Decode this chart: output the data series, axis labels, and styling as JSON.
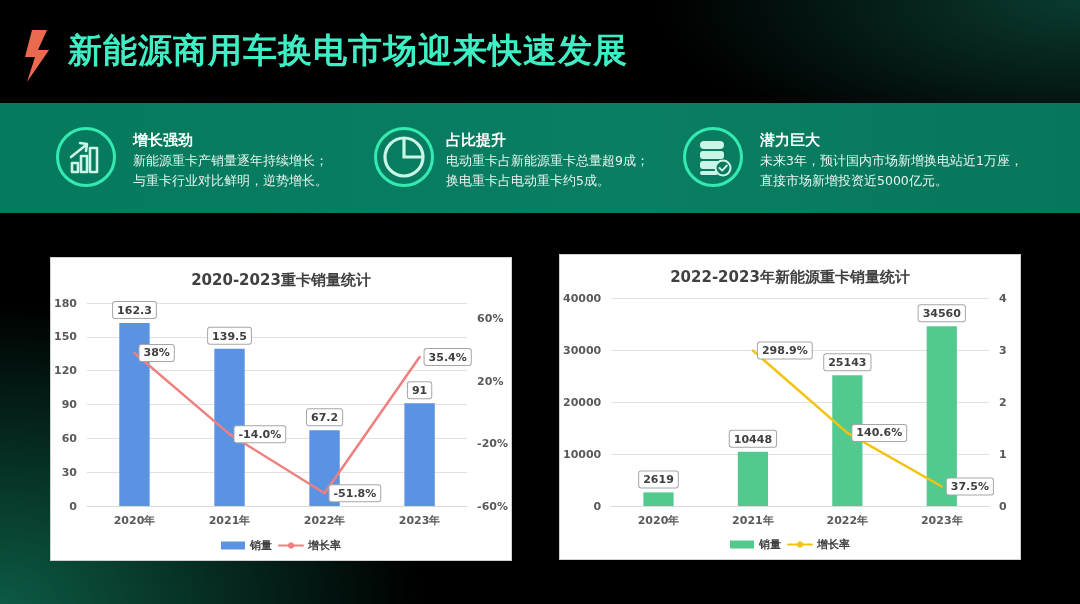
{
  "chart_data": [
    {
      "type": "other",
      "title": "新能源商用车换电市场迎来快速发展",
      "annotations": [
        "增长强劲",
        "新能源重卡产销量逐年持续增长；",
        "与重卡行业对比鲜明，逆势增长。",
        "占比提升",
        "电动重卡占新能源重卡总量超9成；",
        "换电重卡占电动重卡约5成。",
        "潜力巨大",
        "未来3年，预计国内市场新增换电站近1万座，",
        "直接市场新增投资近5000亿元。"
      ]
    },
    {
      "type": "bar",
      "title": "2020-2023重卡销量统计",
      "categories": [
        "2020年",
        "2021年",
        "2022年",
        "2023年"
      ],
      "series": [
        {
          "name": "销量",
          "type": "bar",
          "color": "#5b93e3",
          "values": [
            162.3,
            139.5,
            67.2,
            91
          ],
          "value_labels": [
            "162.3",
            "139.5",
            "67.2",
            "91"
          ]
        },
        {
          "name": "增长率",
          "type": "line",
          "axis": "y2",
          "color": "#f07f7f",
          "values": [
            38,
            -14.0,
            -51.8,
            35.4
          ],
          "value_labels": [
            "38%",
            "-14.0%",
            "-51.8%",
            "35.4%"
          ]
        }
      ],
      "ylim": [
        0,
        180
      ],
      "yticks": [
        0,
        30,
        60,
        90,
        120,
        150,
        180
      ],
      "y2lim": [
        -60,
        70
      ],
      "y2ticks": [
        {
          "value": -60,
          "label": "-60%"
        },
        {
          "value": -20,
          "label": "-20%"
        },
        {
          "value": 20,
          "label": "20%"
        },
        {
          "value": 60,
          "label": "60%"
        }
      ],
      "grid": "y",
      "legend": "bottom",
      "marker": "none"
    },
    {
      "type": "bar",
      "title": "2022-2023年新能源重卡销量统计",
      "categories": [
        "2020年",
        "2021年",
        "2022年",
        "2023年"
      ],
      "series": [
        {
          "name": "销量",
          "type": "bar",
          "color": "#52c98f",
          "values": [
            2619,
            10448,
            25143,
            34560
          ],
          "value_labels": [
            "2619",
            "10448",
            "25143",
            "34560"
          ]
        },
        {
          "name": "增长率",
          "type": "line",
          "axis": "y2",
          "color": "#f2c311",
          "values": [
            null,
            2.989,
            1.406,
            0.375
          ],
          "value_labels": [
            null,
            "298.9%",
            "140.6%",
            "37.5%"
          ]
        }
      ],
      "ylim": [
        0,
        40000
      ],
      "yticks": [
        0,
        10000,
        20000,
        30000,
        40000
      ],
      "y2lim": [
        0,
        4
      ],
      "y2ticks": [
        0,
        1,
        2,
        3,
        4
      ],
      "grid": "y",
      "legend": "bottom",
      "marker": "none"
    }
  ]
}
